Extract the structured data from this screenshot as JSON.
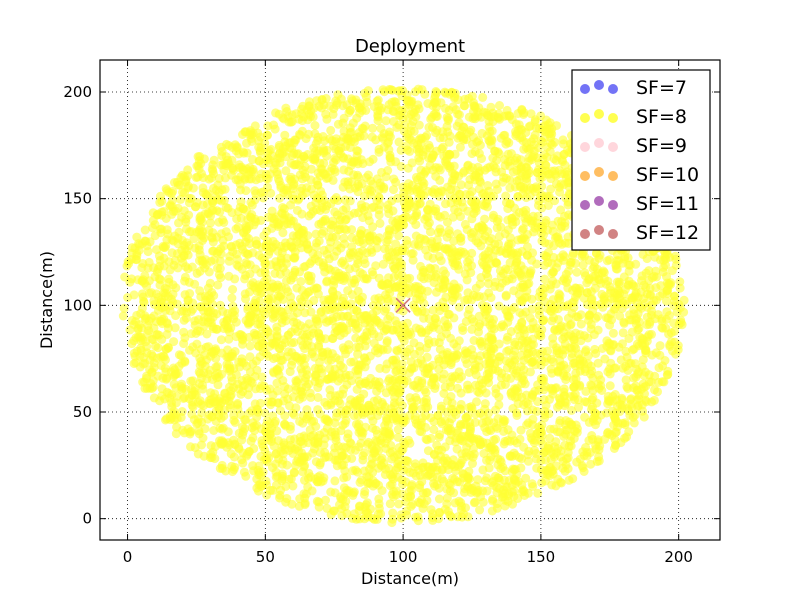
{
  "chart_data": {
    "type": "scatter",
    "title": "Deployment",
    "xlabel": "Distance(m)",
    "ylabel": "Distance(m)",
    "xlim": [
      -10,
      215
    ],
    "ylim": [
      -10,
      215
    ],
    "xticks": [
      0,
      50,
      100,
      150,
      200
    ],
    "yticks": [
      0,
      50,
      100,
      150,
      200
    ],
    "xtick_labels": [
      "0",
      "50",
      "100",
      "150",
      "200"
    ],
    "ytick_labels": [
      "0",
      "50",
      "100",
      "150",
      "200"
    ],
    "grid": true,
    "legend_position": "top-right",
    "deployment": {
      "center": [
        100,
        100
      ],
      "radius": 102,
      "gateway_marker": "x",
      "dominant_series": "SF=8"
    },
    "series": [
      {
        "name": "SF=7",
        "color": "#5b5bf5",
        "count": 0
      },
      {
        "name": "SF=8",
        "color": "#ffff33",
        "count": "majority"
      },
      {
        "name": "SF=9",
        "color": "#ffcfd6",
        "count": 0
      },
      {
        "name": "SF=10",
        "color": "#ffb347",
        "count": 0
      },
      {
        "name": "SF=11",
        "color": "#a352b0",
        "count": 0
      },
      {
        "name": "SF=12",
        "color": "#c96d6d",
        "count": 0
      }
    ]
  }
}
